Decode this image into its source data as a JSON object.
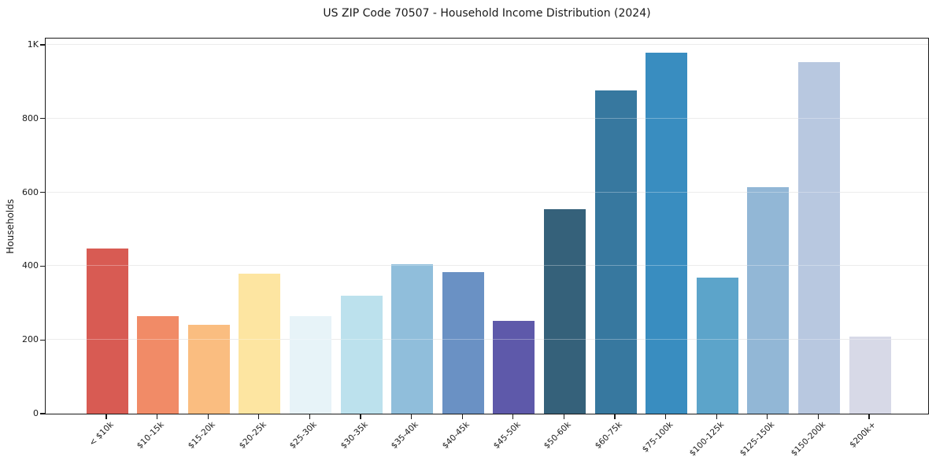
{
  "title": "US ZIP Code 70507 - Household Income Distribution (2024)",
  "chart_data": {
    "type": "bar",
    "title": "US ZIP Code 70507 - Household Income Distribution (2024)",
    "xlabel": "",
    "ylabel": "Households",
    "categories": [
      "< $10k",
      "$10-15k",
      "$15-20k",
      "$20-25k",
      "$25-30k",
      "$30-35k",
      "$35-40k",
      "$40-45k",
      "$45-50k",
      "$50-60k",
      "$60-75k",
      "$75-100k",
      "$100-125k",
      "$125-150k",
      "$150-200k",
      "$200k+"
    ],
    "values": [
      448,
      265,
      241,
      380,
      265,
      320,
      405,
      384,
      251,
      555,
      876,
      978,
      368,
      614,
      954,
      210
    ],
    "bar_colors": [
      "#d85b53",
      "#f18b67",
      "#fabd80",
      "#fde5a1",
      "#e7f3f8",
      "#bce1ed",
      "#90bedb",
      "#6a91c4",
      "#5e59aa",
      "#35617a",
      "#37789f",
      "#398dc0",
      "#5ca4ca",
      "#92b7d6",
      "#b8c8e0",
      "#d7d9e7"
    ],
    "ylim": [
      0,
      1021
    ],
    "yticks": [
      0,
      200,
      400,
      600,
      800,
      1000
    ],
    "ytick_labels": [
      "0",
      "200",
      "400",
      "600",
      "800",
      "1K"
    ],
    "grid": "horizontal",
    "legend": false
  },
  "colors": {
    "grid": "#e4e4e4",
    "spine": "#1a1a1a",
    "text": "#1a1a1a",
    "background": "#ffffff"
  }
}
